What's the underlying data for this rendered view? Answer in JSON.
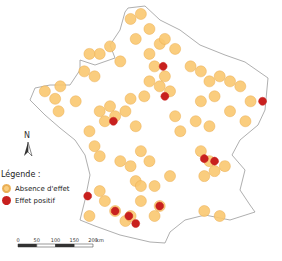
{
  "chart_data": {
    "type": "scatter",
    "legend_title": "Légende :",
    "north_label": "N",
    "scale_bar": {
      "ticks": [
        0,
        50,
        100,
        150,
        200
      ],
      "unit": "km"
    },
    "xlim": [
      -5,
      8.3
    ],
    "ylim": [
      42.3,
      51.2
    ],
    "tick_labels": false,
    "grid": false,
    "legend": "left",
    "series": [
      {
        "name": "Absence d'effet",
        "color": "#f9c870",
        "marker": "circle",
        "values": [
          [
            0.4,
            50.6
          ],
          [
            1.0,
            50.8
          ],
          [
            1.5,
            50.2
          ],
          [
            0.7,
            49.8
          ],
          [
            2.1,
            49.6
          ],
          [
            2.4,
            49.8
          ],
          [
            3.0,
            49.4
          ],
          [
            1.5,
            49.2
          ],
          [
            1.8,
            48.7
          ],
          [
            -0.8,
            49.5
          ],
          [
            -1.4,
            49.2
          ],
          [
            -0.2,
            48.9
          ],
          [
            -2.0,
            49.2
          ],
          [
            -2.3,
            48.5
          ],
          [
            -1.7,
            48.3
          ],
          [
            -4.6,
            47.7
          ],
          [
            -4.0,
            47.4
          ],
          [
            -3.7,
            47.9
          ],
          [
            -2.8,
            47.3
          ],
          [
            -3.8,
            46.9
          ],
          [
            -1.4,
            46.9
          ],
          [
            -0.8,
            47.1
          ],
          [
            -0.5,
            46.7
          ],
          [
            0.1,
            46.9
          ],
          [
            -1.1,
            46.5
          ],
          [
            0.7,
            46.3
          ],
          [
            0.4,
            47.4
          ],
          [
            1.5,
            48.1
          ],
          [
            2.1,
            47.9
          ],
          [
            2.7,
            47.7
          ],
          [
            1.2,
            47.5
          ],
          [
            2.4,
            48.3
          ],
          [
            3.9,
            48.7
          ],
          [
            4.5,
            48.5
          ],
          [
            5.0,
            48.1
          ],
          [
            5.6,
            48.3
          ],
          [
            6.2,
            48.1
          ],
          [
            6.8,
            47.9
          ],
          [
            5.3,
            47.5
          ],
          [
            4.5,
            47.3
          ],
          [
            6.2,
            46.9
          ],
          [
            7.1,
            46.5
          ],
          [
            7.4,
            47.3
          ],
          [
            4.2,
            46.5
          ],
          [
            5.0,
            46.3
          ],
          [
            3.0,
            46.7
          ],
          [
            3.3,
            46.1
          ],
          [
            1.0,
            45.3
          ],
          [
            1.5,
            44.9
          ],
          [
            0.4,
            44.7
          ],
          [
            -0.2,
            44.9
          ],
          [
            -1.7,
            45.5
          ],
          [
            -1.4,
            45.1
          ],
          [
            -2.0,
            46.1
          ],
          [
            0.7,
            44.1
          ],
          [
            1.0,
            43.9
          ],
          [
            1.8,
            43.9
          ],
          [
            2.7,
            44.3
          ],
          [
            4.5,
            45.3
          ],
          [
            5.0,
            44.9
          ],
          [
            5.3,
            44.5
          ],
          [
            4.7,
            44.3
          ],
          [
            5.9,
            44.7
          ],
          [
            -1.4,
            43.7
          ],
          [
            -1.1,
            43.3
          ],
          [
            -2.0,
            42.7
          ],
          [
            -0.5,
            42.9
          ],
          [
            0.1,
            42.5
          ],
          [
            0.4,
            42.7
          ],
          [
            1.0,
            43.3
          ],
          [
            1.8,
            42.7
          ],
          [
            2.1,
            43.1
          ],
          [
            4.7,
            42.9
          ],
          [
            5.6,
            42.7
          ]
        ]
      },
      {
        "name": "Effet positif",
        "color": "#c8201e",
        "marker": "circle",
        "values": [
          [
            2.4,
            47.5
          ],
          [
            2.3,
            48.7
          ],
          [
            -0.6,
            46.5
          ],
          [
            8.1,
            47.3
          ],
          [
            4.7,
            45.0
          ],
          [
            5.3,
            44.9
          ],
          [
            -2.1,
            43.5
          ],
          [
            -0.5,
            42.9
          ],
          [
            0.3,
            42.7
          ],
          [
            0.7,
            42.4
          ],
          [
            2.1,
            43.1
          ]
        ]
      }
    ]
  }
}
